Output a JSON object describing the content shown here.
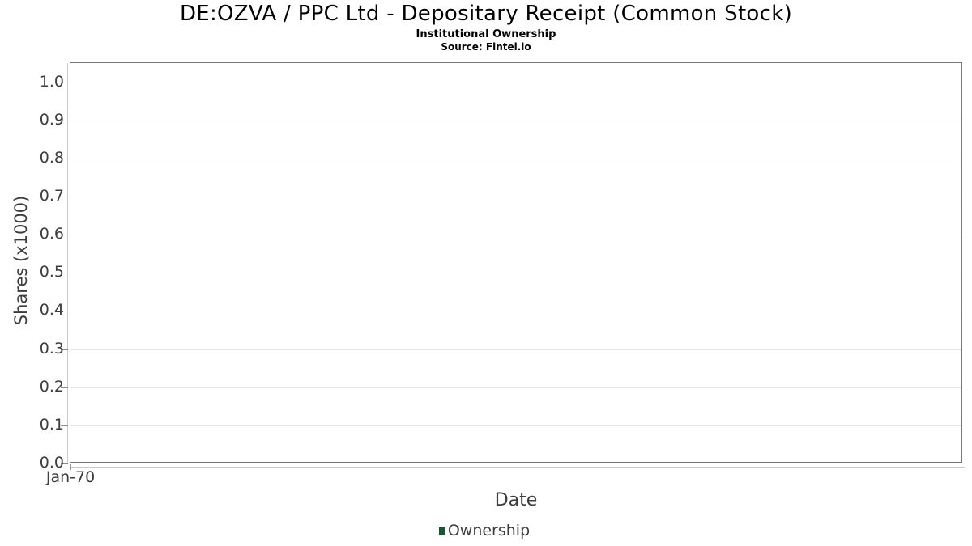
{
  "header": {
    "title": "DE:OZVA / PPC Ltd - Depositary Receipt (Common Stock)",
    "subtitle": "Institutional Ownership",
    "source": "Source: Fintel.io"
  },
  "chart_data": {
    "type": "line",
    "title": "DE:OZVA / PPC Ltd - Depositary Receipt (Common Stock)",
    "subtitle": "Institutional Ownership",
    "source_note": "Source: Fintel.io",
    "xlabel": "Date",
    "ylabel": "Shares (x1000)",
    "x_tick_labels": [
      "Jan-70"
    ],
    "y_tick_labels": [
      "0.0",
      "0.1",
      "0.2",
      "0.3",
      "0.4",
      "0.5",
      "0.6",
      "0.7",
      "0.8",
      "0.9",
      "1.0"
    ],
    "ylim": [
      0,
      1.05
    ],
    "grid": true,
    "legend_position": "bottom",
    "series": [
      {
        "name": "Ownership",
        "color": "#1a5632",
        "values": []
      }
    ]
  },
  "legend": {
    "items": [
      {
        "label": "Ownership",
        "color": "#1a5632"
      }
    ]
  },
  "colors": {
    "grid": "#e6e6e6",
    "panel_border": "#787878",
    "axis_line": "#c9c9c9",
    "tick": "#8a8a8a",
    "text": "#3d3d3d",
    "title": "#000000",
    "series_green": "#1a5632"
  }
}
